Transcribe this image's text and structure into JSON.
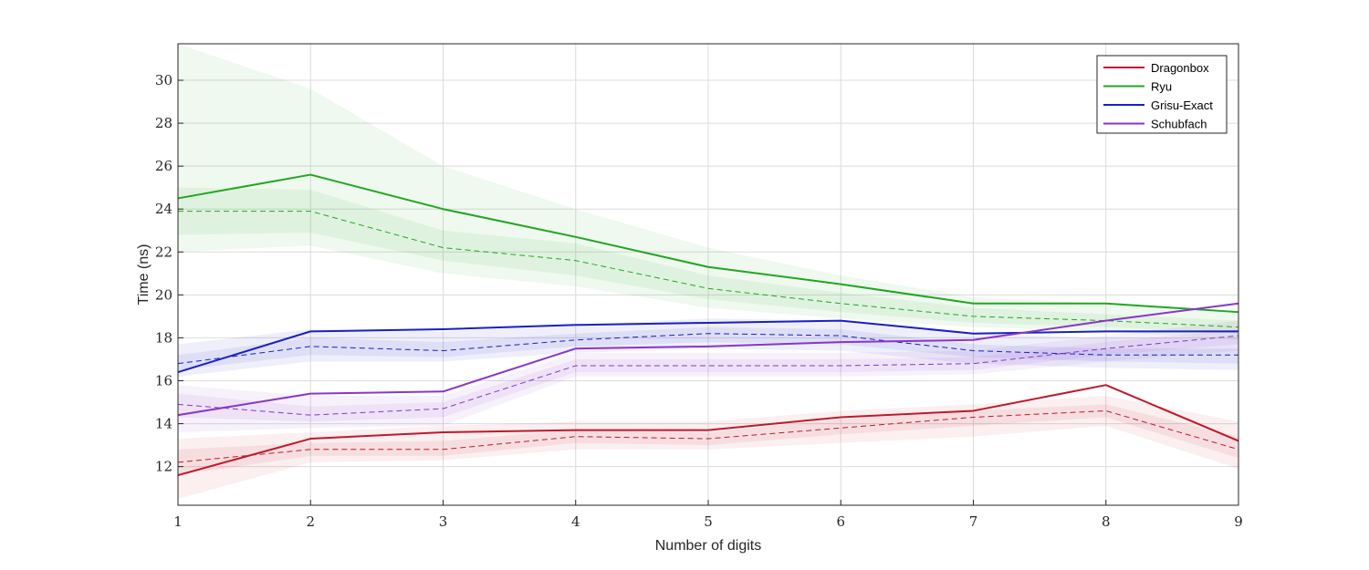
{
  "chart_data": {
    "type": "line",
    "xlabel": "Number of digits",
    "ylabel": "Time (ns)",
    "xlim": [
      1,
      9
    ],
    "ylim": [
      10.2,
      31.7
    ],
    "xticks": [
      "1",
      "2",
      "3",
      "4",
      "5",
      "6",
      "7",
      "8",
      "9"
    ],
    "yticks": [
      "12",
      "14",
      "16",
      "18",
      "20",
      "22",
      "24",
      "26",
      "28",
      "30"
    ],
    "grid": true,
    "legend_position": "top-right",
    "x": [
      1,
      2,
      3,
      4,
      5,
      6,
      7,
      8,
      9
    ],
    "series": [
      {
        "name": "Dragonbox",
        "color": "#c0182a",
        "solid": [
          11.6,
          13.3,
          13.6,
          13.7,
          13.7,
          14.3,
          14.6,
          15.8,
          13.2
        ],
        "dashed": [
          12.2,
          12.8,
          12.8,
          13.4,
          13.3,
          13.8,
          14.3,
          14.6,
          12.8
        ],
        "band_outer_lo": [
          10.5,
          12.2,
          12.3,
          12.8,
          12.8,
          13.1,
          13.4,
          13.9,
          11.9
        ],
        "band_outer_hi": [
          13.3,
          13.6,
          13.9,
          14.1,
          14.1,
          14.6,
          14.9,
          15.3,
          14.1
        ],
        "band_inner_lo": [
          11.6,
          12.5,
          12.5,
          13.1,
          13.0,
          13.5,
          13.9,
          14.3,
          12.4
        ],
        "band_inner_hi": [
          12.8,
          13.1,
          13.2,
          13.7,
          13.6,
          14.2,
          14.6,
          14.9,
          13.4
        ]
      },
      {
        "name": "Ryu",
        "color": "#21a621",
        "solid": [
          24.5,
          25.6,
          24.0,
          22.7,
          21.3,
          20.5,
          19.6,
          19.6,
          19.2
        ],
        "dashed": [
          23.9,
          23.9,
          22.2,
          21.6,
          20.3,
          19.6,
          19.0,
          18.8,
          18.5
        ],
        "band_outer_lo": [
          22.0,
          22.3,
          21.0,
          20.4,
          19.4,
          18.9,
          18.5,
          18.3,
          17.9
        ],
        "band_outer_hi": [
          31.7,
          29.6,
          26.0,
          24.0,
          22.2,
          20.9,
          19.9,
          19.6,
          19.2
        ],
        "band_inner_lo": [
          22.8,
          22.9,
          21.6,
          20.9,
          19.8,
          19.2,
          18.7,
          18.5,
          18.2
        ],
        "band_inner_hi": [
          25.0,
          24.9,
          23.0,
          22.4,
          20.9,
          20.1,
          19.4,
          19.1,
          18.8
        ]
      },
      {
        "name": "Grisu-Exact",
        "color": "#1a1fc2",
        "solid": [
          16.4,
          18.3,
          18.4,
          18.6,
          18.7,
          18.8,
          18.2,
          18.3,
          18.3
        ],
        "dashed": [
          16.8,
          17.6,
          17.4,
          17.9,
          18.2,
          18.1,
          17.4,
          17.2,
          17.2
        ],
        "band_outer_lo": [
          16.2,
          16.9,
          16.9,
          17.3,
          17.5,
          17.4,
          16.8,
          16.6,
          16.5
        ],
        "band_outer_hi": [
          17.7,
          18.4,
          18.3,
          18.6,
          18.9,
          18.8,
          18.2,
          18.0,
          18.0
        ],
        "band_inner_lo": [
          16.5,
          17.2,
          17.1,
          17.6,
          17.8,
          17.7,
          17.1,
          16.9,
          16.8
        ],
        "band_inner_hi": [
          17.2,
          18.0,
          17.8,
          18.2,
          18.5,
          18.4,
          17.7,
          17.5,
          17.5
        ]
      },
      {
        "name": "Schubfach",
        "color": "#8a35c8",
        "solid": [
          14.4,
          15.4,
          15.5,
          17.5,
          17.6,
          17.8,
          17.9,
          18.8,
          19.6
        ],
        "dashed": [
          14.9,
          14.4,
          14.7,
          16.7,
          16.7,
          16.7,
          16.8,
          17.5,
          18.1
        ],
        "band_outer_lo": [
          13.6,
          13.8,
          13.9,
          16.2,
          16.2,
          16.2,
          16.3,
          16.9,
          17.4
        ],
        "band_outer_hi": [
          15.8,
          15.3,
          15.3,
          17.3,
          17.3,
          17.3,
          17.4,
          18.1,
          18.8
        ],
        "band_inner_lo": [
          14.3,
          14.1,
          14.3,
          16.4,
          16.4,
          16.4,
          16.5,
          17.2,
          17.7
        ],
        "band_inner_hi": [
          15.4,
          14.8,
          15.0,
          17.0,
          17.0,
          17.0,
          17.1,
          17.8,
          18.4
        ]
      }
    ]
  }
}
